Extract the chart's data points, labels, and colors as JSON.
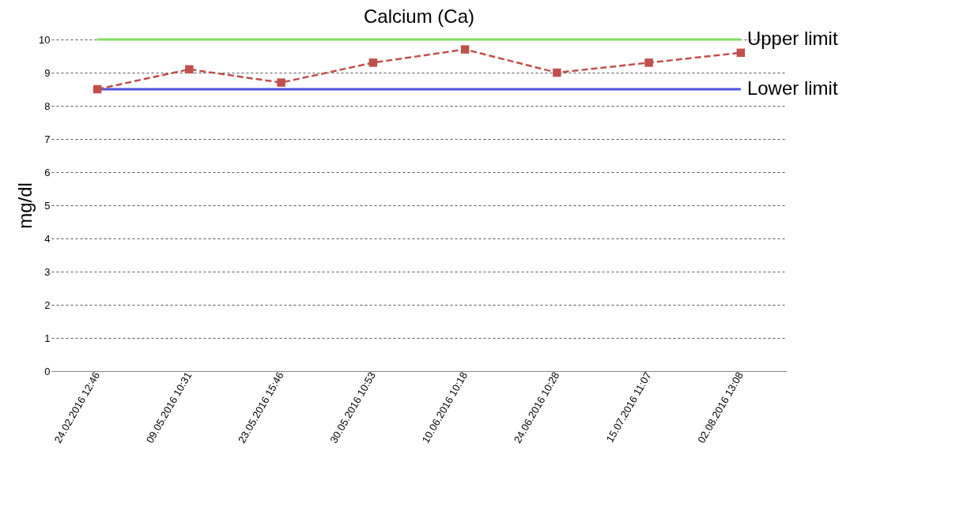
{
  "chart_data": {
    "type": "line",
    "title": "Calcium (Ca)",
    "ylabel": "mg/dl",
    "categories": [
      "24.02.2016 12:46",
      "09.05.2016 10:31",
      "23.05.2016 15:46",
      "30.05.2016 10:53",
      "10.06.2016 10:18",
      "24.06.2016 10:28",
      "15.07.2016 11:07",
      "02.08.2016 13:08"
    ],
    "series": [
      {
        "color": "#c0504d",
        "values": [
          8.5,
          9.1,
          8.7,
          9.3,
          9.7,
          9.0,
          9.3,
          9.6
        ]
      }
    ],
    "marker": "square",
    "line_style": "dashed",
    "ylim": [
      0,
      10
    ],
    "yticks": [
      0,
      1,
      2,
      3,
      4,
      5,
      6,
      7,
      8,
      9,
      10
    ],
    "grid": "y",
    "ref_lines": [
      {
        "axis": "y",
        "value": 10,
        "label": "Upper limit",
        "color": "#80e060"
      },
      {
        "axis": "y",
        "value": 8.5,
        "label": "Lower limit",
        "color": "#5050e0"
      }
    ]
  }
}
